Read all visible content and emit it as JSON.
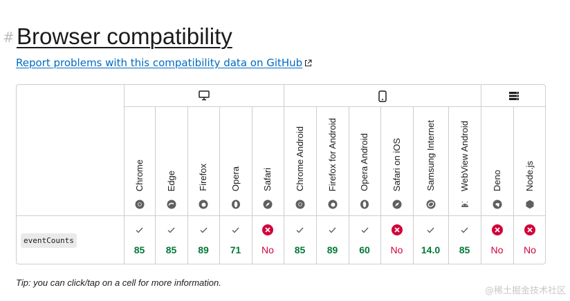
{
  "heading": {
    "hash": "#",
    "title": "Browser compatibility"
  },
  "report_link": "Report problems with this compatibility data on GitHub",
  "groups": [
    {
      "name": "desktop",
      "icon": "desktop-icon"
    },
    {
      "name": "mobile",
      "icon": "mobile-icon"
    },
    {
      "name": "server",
      "icon": "server-icon"
    }
  ],
  "browsers": [
    {
      "name": "Chrome",
      "icon": "chrome-icon",
      "version": "85",
      "supported": true
    },
    {
      "name": "Edge",
      "icon": "edge-icon",
      "version": "85",
      "supported": true
    },
    {
      "name": "Firefox",
      "icon": "firefox-icon",
      "version": "89",
      "supported": true
    },
    {
      "name": "Opera",
      "icon": "opera-icon",
      "version": "71",
      "supported": true
    },
    {
      "name": "Safari",
      "icon": "safari-icon",
      "version": "No",
      "supported": false
    },
    {
      "name": "Chrome Android",
      "icon": "chrome-icon",
      "version": "85",
      "supported": true
    },
    {
      "name": "Firefox for Android",
      "icon": "firefox-icon",
      "version": "89",
      "supported": true
    },
    {
      "name": "Opera Android",
      "icon": "opera-icon",
      "version": "60",
      "supported": true
    },
    {
      "name": "Safari on iOS",
      "icon": "safari-icon",
      "version": "No",
      "supported": false
    },
    {
      "name": "Samsung Internet",
      "icon": "samsung-internet-icon",
      "version": "14.0",
      "supported": true
    },
    {
      "name": "WebView Android",
      "icon": "android-icon",
      "version": "85",
      "supported": true
    },
    {
      "name": "Deno",
      "icon": "deno-icon",
      "version": "No",
      "supported": false
    },
    {
      "name": "Node.js",
      "icon": "nodejs-icon",
      "version": "No",
      "supported": false
    }
  ],
  "feature": "eventCounts",
  "tip": "Tip: you can click/tap on a cell for more information.",
  "watermark": "@稀土掘金技术社区",
  "colors": {
    "yes": "#007936",
    "no": "#d30038",
    "link": "#0069c2",
    "border": "#cdcdcd"
  }
}
